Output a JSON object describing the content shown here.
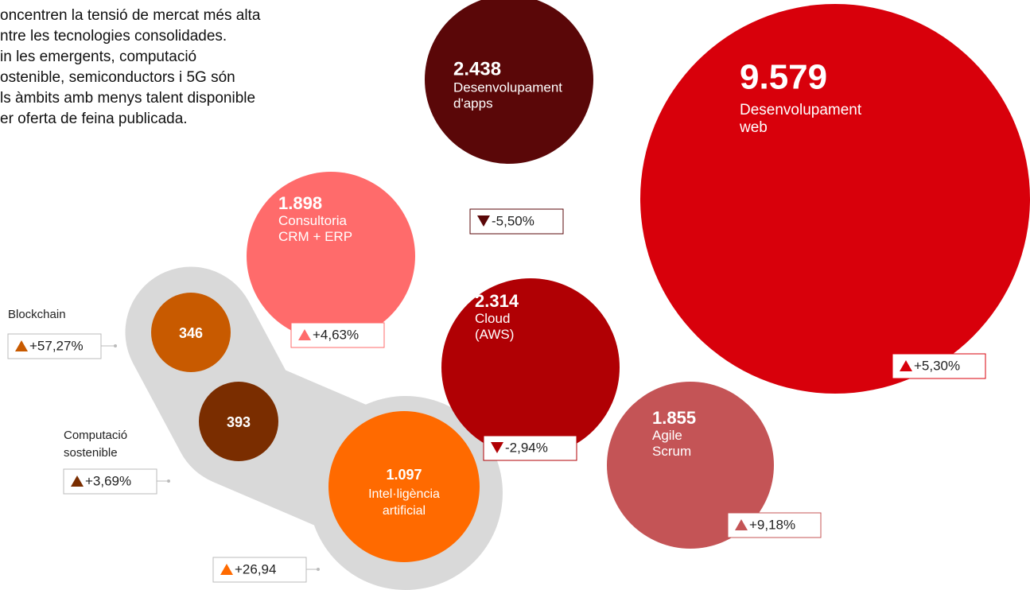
{
  "intro": [
    "oncentren la tensió de mercat més alta",
    "ntre les tecnologies consolidades.",
    "in les emergents, computació",
    "ostenible, semiconductors i 5G són",
    "ls àmbits amb menys talent disponible",
    "er oferta de feina publicada."
  ],
  "bubbles": [
    {
      "value": "9.579",
      "label": [
        "Desenvolupament",
        "web"
      ],
      "change": "+5,30%",
      "direction": "up",
      "color": "#d8000b"
    },
    {
      "value": "2.438",
      "label": [
        "Desenvolupament",
        "d'apps"
      ],
      "change": "-5,50%",
      "direction": "down",
      "color": "#5a0708"
    },
    {
      "value": "1.898",
      "label": [
        "Consultoria",
        "CRM + ERP"
      ],
      "change": "+4,63%",
      "direction": "up",
      "color": "#ff6b6b"
    },
    {
      "value": "2.314",
      "label": [
        "Cloud",
        "(AWS)"
      ],
      "change": "-2,94%",
      "direction": "down",
      "color": "#b00004"
    },
    {
      "value": "1.855",
      "label": [
        "Agile",
        "Scrum"
      ],
      "change": "+9,18%",
      "direction": "up",
      "color": "#c45456"
    }
  ],
  "emerging": [
    {
      "value": "346",
      "label": [
        "Blockchain"
      ],
      "change": "+57,27%",
      "color": "#c85a00"
    },
    {
      "value": "393",
      "label": [
        "Computació",
        "sostenible"
      ],
      "change": "+3,69%",
      "color": "#7a2d00"
    },
    {
      "value": "1.097",
      "label": [
        "Intel·ligència",
        "artificial"
      ],
      "change": "+26,94",
      "color": "#ff6a00"
    }
  ]
}
